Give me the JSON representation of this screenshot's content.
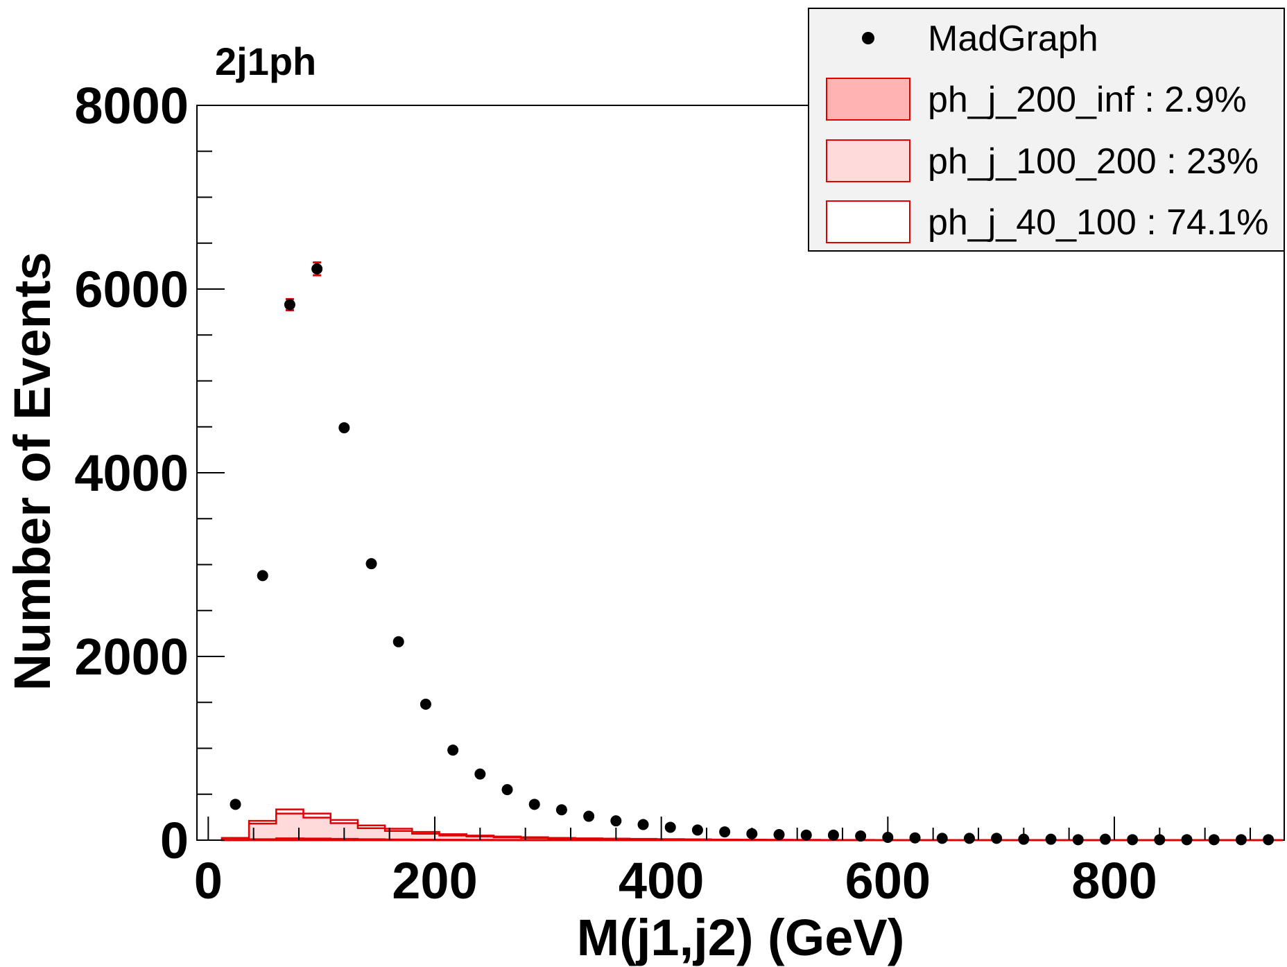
{
  "chart_data": {
    "type": "scatter",
    "title": "2j1ph",
    "xlabel": "M(j1,j2) (GeV)",
    "ylabel": "Number of Events",
    "xlim": [
      -10,
      950
    ],
    "ylim": [
      0,
      8000
    ],
    "x_ticks": [
      0,
      200,
      400,
      600,
      800
    ],
    "x_tick_labels": [
      "0",
      "200",
      "400",
      "600",
      "800"
    ],
    "y_ticks": [
      0,
      2000,
      4000,
      6000,
      8000
    ],
    "y_tick_labels": [
      "0",
      "2000",
      "4000",
      "6000",
      "8000"
    ],
    "grid": false,
    "legend_position": "top-right",
    "colors": {
      "points": "#000000",
      "hist_line": "#e00000",
      "fill_200_inf": "#ffb3b3",
      "fill_100_200": "#ffdada",
      "fill_40_100": "#ffffff",
      "error_bar": "#e00000",
      "legend_bg": "#f2f2f2"
    },
    "legend": [
      {
        "label": "MadGraph",
        "style": "marker"
      },
      {
        "label": "ph_j_200_inf : 2.9%",
        "style": "box",
        "fill": "#ffb3b3"
      },
      {
        "label": "ph_j_100_200 : 23%",
        "style": "box",
        "fill": "#ffdada"
      },
      {
        "label": "ph_j_40_100 : 74.1%",
        "style": "box",
        "fill": "#ffffff"
      }
    ],
    "series": [
      {
        "name": "MadGraph",
        "kind": "points",
        "x": [
          24,
          48,
          72,
          96,
          120,
          144,
          168,
          192,
          216,
          240,
          264,
          288,
          312,
          336,
          360,
          384,
          408,
          432,
          456,
          480,
          504,
          528,
          552,
          576,
          600,
          624,
          648,
          672,
          696,
          720,
          744,
          768,
          792,
          816,
          840,
          864,
          888,
          912,
          936
        ],
        "y": [
          390,
          2880,
          5830,
          6220,
          4490,
          3010,
          2160,
          1480,
          980,
          720,
          550,
          390,
          330,
          260,
          210,
          170,
          140,
          110,
          90,
          70,
          60,
          55,
          55,
          45,
          30,
          25,
          20,
          20,
          20,
          10,
          10,
          5,
          10,
          5,
          5,
          5,
          5,
          5,
          5
        ],
        "errors": [
          0,
          0,
          60,
          70,
          0,
          0,
          0,
          0,
          0,
          0,
          0,
          0,
          0,
          0,
          0,
          0,
          0,
          0,
          0,
          0,
          0,
          0,
          0,
          0,
          0,
          0,
          0,
          0,
          0,
          0,
          0,
          0,
          0,
          0,
          0,
          0,
          0,
          0,
          0
        ]
      },
      {
        "name": "ph_j_40_100 : 74.1%",
        "kind": "stacked_hist",
        "bin_edges": [
          12,
          36,
          60,
          84,
          108,
          132,
          156,
          180,
          204,
          228,
          252,
          276,
          300,
          324,
          348,
          372,
          396,
          420,
          444,
          468,
          492,
          516,
          540,
          564,
          588,
          612,
          636,
          660,
          684,
          708,
          732,
          756,
          780,
          804,
          828,
          852,
          876,
          900,
          924,
          948
        ],
        "cumulative_top": [
          25,
          210,
          335,
          290,
          220,
          160,
          125,
          90,
          65,
          50,
          40,
          32,
          25,
          20,
          17,
          14,
          11,
          9,
          7,
          6,
          5,
          4,
          3,
          3,
          2,
          2,
          2,
          1,
          1,
          1,
          1,
          1,
          1,
          1,
          1,
          1,
          1,
          1,
          1
        ]
      },
      {
        "name": "ph_j_100_200 : 23%",
        "kind": "stacked_hist",
        "cumulative_top": [
          5,
          180,
          290,
          245,
          185,
          130,
          100,
          70,
          50,
          40,
          30,
          24,
          18,
          14,
          12,
          10,
          8,
          6,
          5,
          4,
          3,
          3,
          2,
          2,
          1,
          1,
          1,
          1,
          1,
          1,
          1,
          1,
          1,
          1,
          1,
          1,
          1,
          1,
          1
        ]
      },
      {
        "name": "ph_j_200_inf : 2.9%",
        "kind": "stacked_hist",
        "cumulative_top": [
          0,
          10,
          20,
          18,
          14,
          10,
          8,
          6,
          5,
          4,
          3,
          2,
          2,
          2,
          1,
          1,
          1,
          1,
          1,
          1,
          1,
          1,
          1,
          1,
          1,
          1,
          1,
          1,
          1,
          1,
          1,
          1,
          1,
          1,
          1,
          1,
          1,
          1,
          1
        ]
      }
    ]
  }
}
